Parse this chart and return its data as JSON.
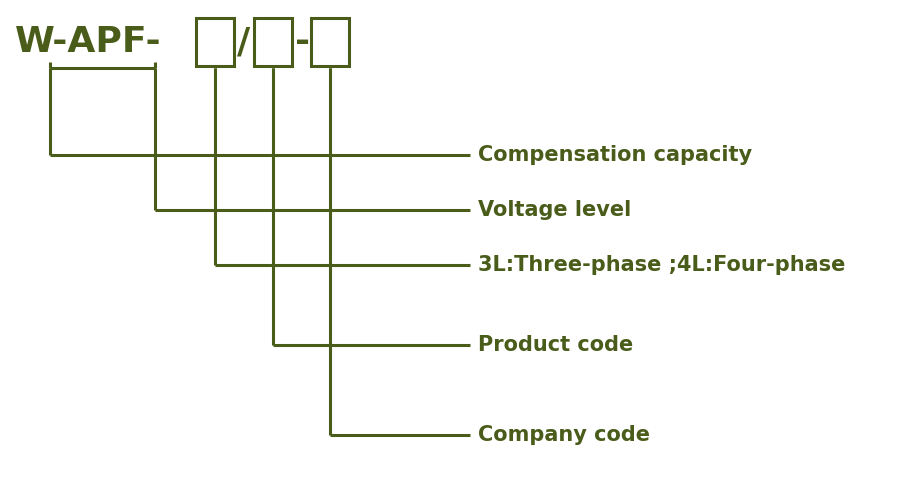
{
  "color": "#4a5c1a",
  "bg_color": "#ffffff",
  "labels": [
    "Compensation capacity",
    "Voltage level",
    "3L:Three-phase ;4L:Four-phase",
    "Product code",
    "Company code"
  ],
  "title_fontsize": 26,
  "label_fontsize": 15,
  "line_width": 2.2,
  "fig_width": 9.2,
  "fig_height": 4.97
}
